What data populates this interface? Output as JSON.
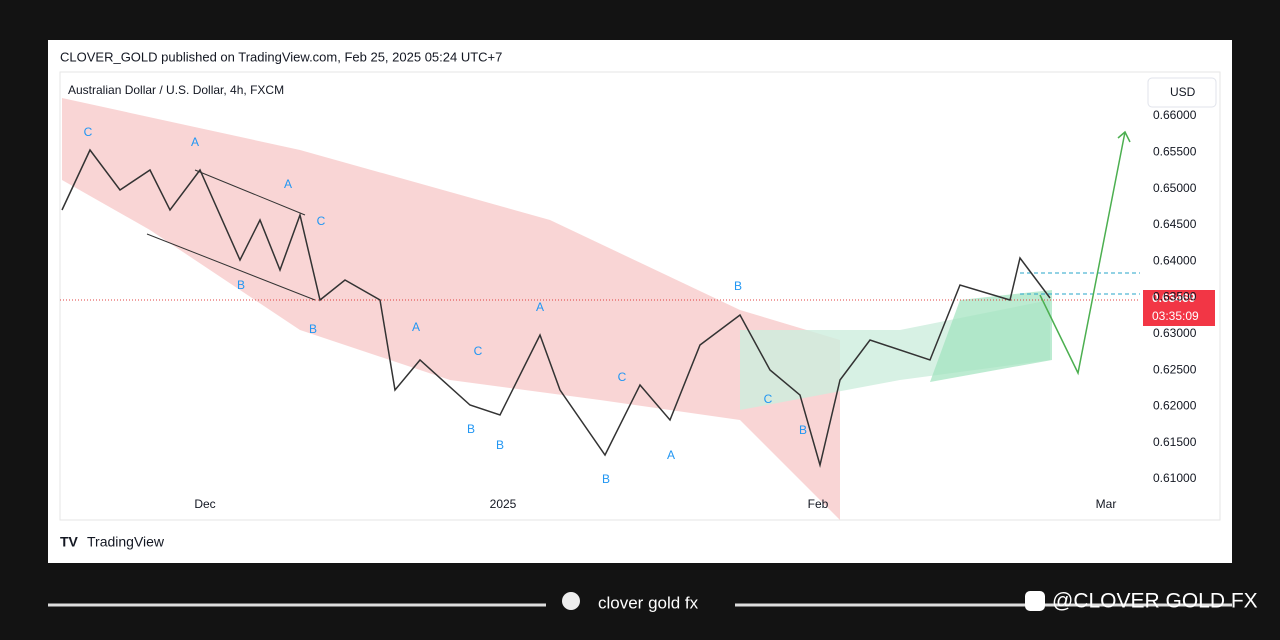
{
  "header": {
    "publisher": "CLOVER_GOLD published on TradingView.com, Feb 25, 2025 05:24 UTC+7"
  },
  "chart": {
    "symbol": "Australian Dollar / U.S. Dollar, 4h, FXCM",
    "currency": "USD",
    "price_labels": [
      "0.66000",
      "0.65500",
      "0.65000",
      "0.64500",
      "0.64000",
      "0.63500",
      "0.63000",
      "0.62500",
      "0.62000",
      "0.61500",
      "0.61000"
    ],
    "last_price": "0.63469",
    "countdown": "03:35:09",
    "time_labels": [
      "Dec",
      "2025",
      "Feb",
      "Mar"
    ],
    "annotations": [
      "C",
      "A",
      "A",
      "C",
      "B",
      "B",
      "A",
      "C",
      "B",
      "B",
      "A",
      "C",
      "B",
      "A",
      "C",
      "B",
      "B"
    ],
    "brand": "TradingView"
  },
  "footer": {
    "logo_text": "clover gold fx",
    "handle": "@CLOVER GOLD FX"
  }
}
